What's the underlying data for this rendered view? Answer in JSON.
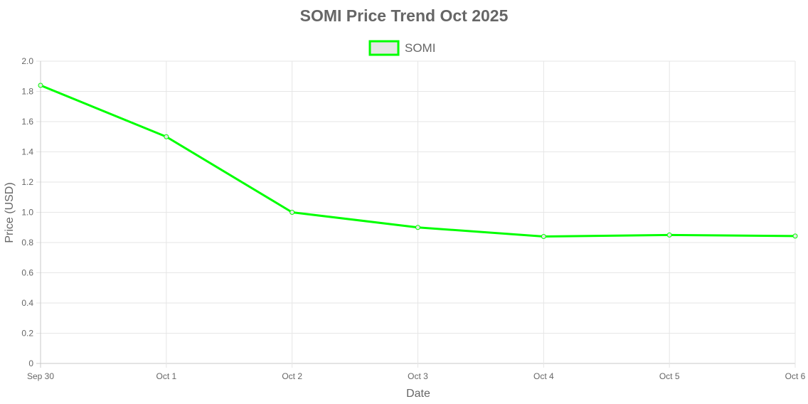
{
  "chart_data": {
    "type": "line",
    "title": "SOMI Price Trend Oct 2025",
    "xlabel": "Date",
    "ylabel": "Price (USD)",
    "categories": [
      "Sep 30",
      "Oct 1",
      "Oct 2",
      "Oct 3",
      "Oct 4",
      "Oct 5",
      "Oct 6"
    ],
    "series": [
      {
        "name": "SOMI",
        "values": [
          1.84,
          1.5,
          1.0,
          0.9,
          0.84,
          0.85,
          0.843
        ],
        "color": "#00ff00"
      }
    ],
    "ylim": [
      0,
      2.0
    ],
    "yticks": [
      "0",
      "0.2",
      "0.4",
      "0.6",
      "0.8",
      "1.0",
      "1.2",
      "1.4",
      "1.6",
      "1.8",
      "2.0"
    ],
    "grid": true,
    "legend": "top-center"
  }
}
